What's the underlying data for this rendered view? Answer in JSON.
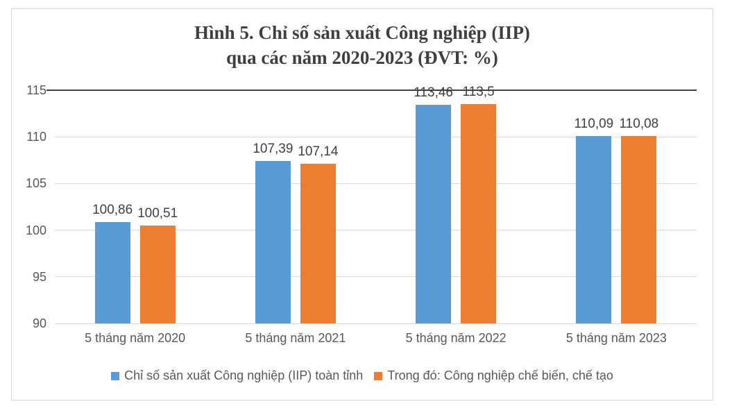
{
  "figure": {
    "title_line1": "Hình 5. Chỉ số sản xuất Công nghiệp (IIP)",
    "title_line2": "qua các năm 2020-2023 (ĐVT: %)"
  },
  "chart_data": {
    "type": "bar",
    "title": "Hình 5. Chỉ số sản xuất Công nghiệp (IIP) qua các năm 2020-2023 (ĐVT: %)",
    "unit": "%",
    "categories": [
      "5 tháng năm 2020",
      "5 tháng năm 2021",
      "5 tháng năm 2022",
      "5 tháng năm 2023"
    ],
    "series": [
      {
        "name": "Chỉ số sản xuất Công nghiệp (IIP) toàn tỉnh",
        "color": "#5B9BD5",
        "values": [
          100.86,
          107.39,
          113.46,
          110.09
        ],
        "labels": [
          "100,86",
          "107,39",
          "113,46",
          "110,09"
        ]
      },
      {
        "name": "Trong đó: Công nghiệp chế biến, chế tạo",
        "color": "#ED7D31",
        "values": [
          100.51,
          107.14,
          113.5,
          110.08
        ],
        "labels": [
          "100,51",
          "107,14",
          "113,5",
          "110,08"
        ]
      }
    ],
    "ylim": [
      90,
      115
    ],
    "yticks": [
      90,
      95,
      100,
      105,
      110,
      115
    ],
    "grid": true,
    "highlight_line_at": 115,
    "legend_position": "bottom"
  },
  "colors": {
    "series_blue": "#5B9BD5",
    "series_orange": "#ED7D31",
    "gridline": "#D9D9D9",
    "axis_text": "#595959",
    "data_label_text": "#404040",
    "title_text": "#3F3F3F",
    "highlight_line": "#404040",
    "box_border": "#D6D6D6",
    "background": "#FFFFFF"
  }
}
